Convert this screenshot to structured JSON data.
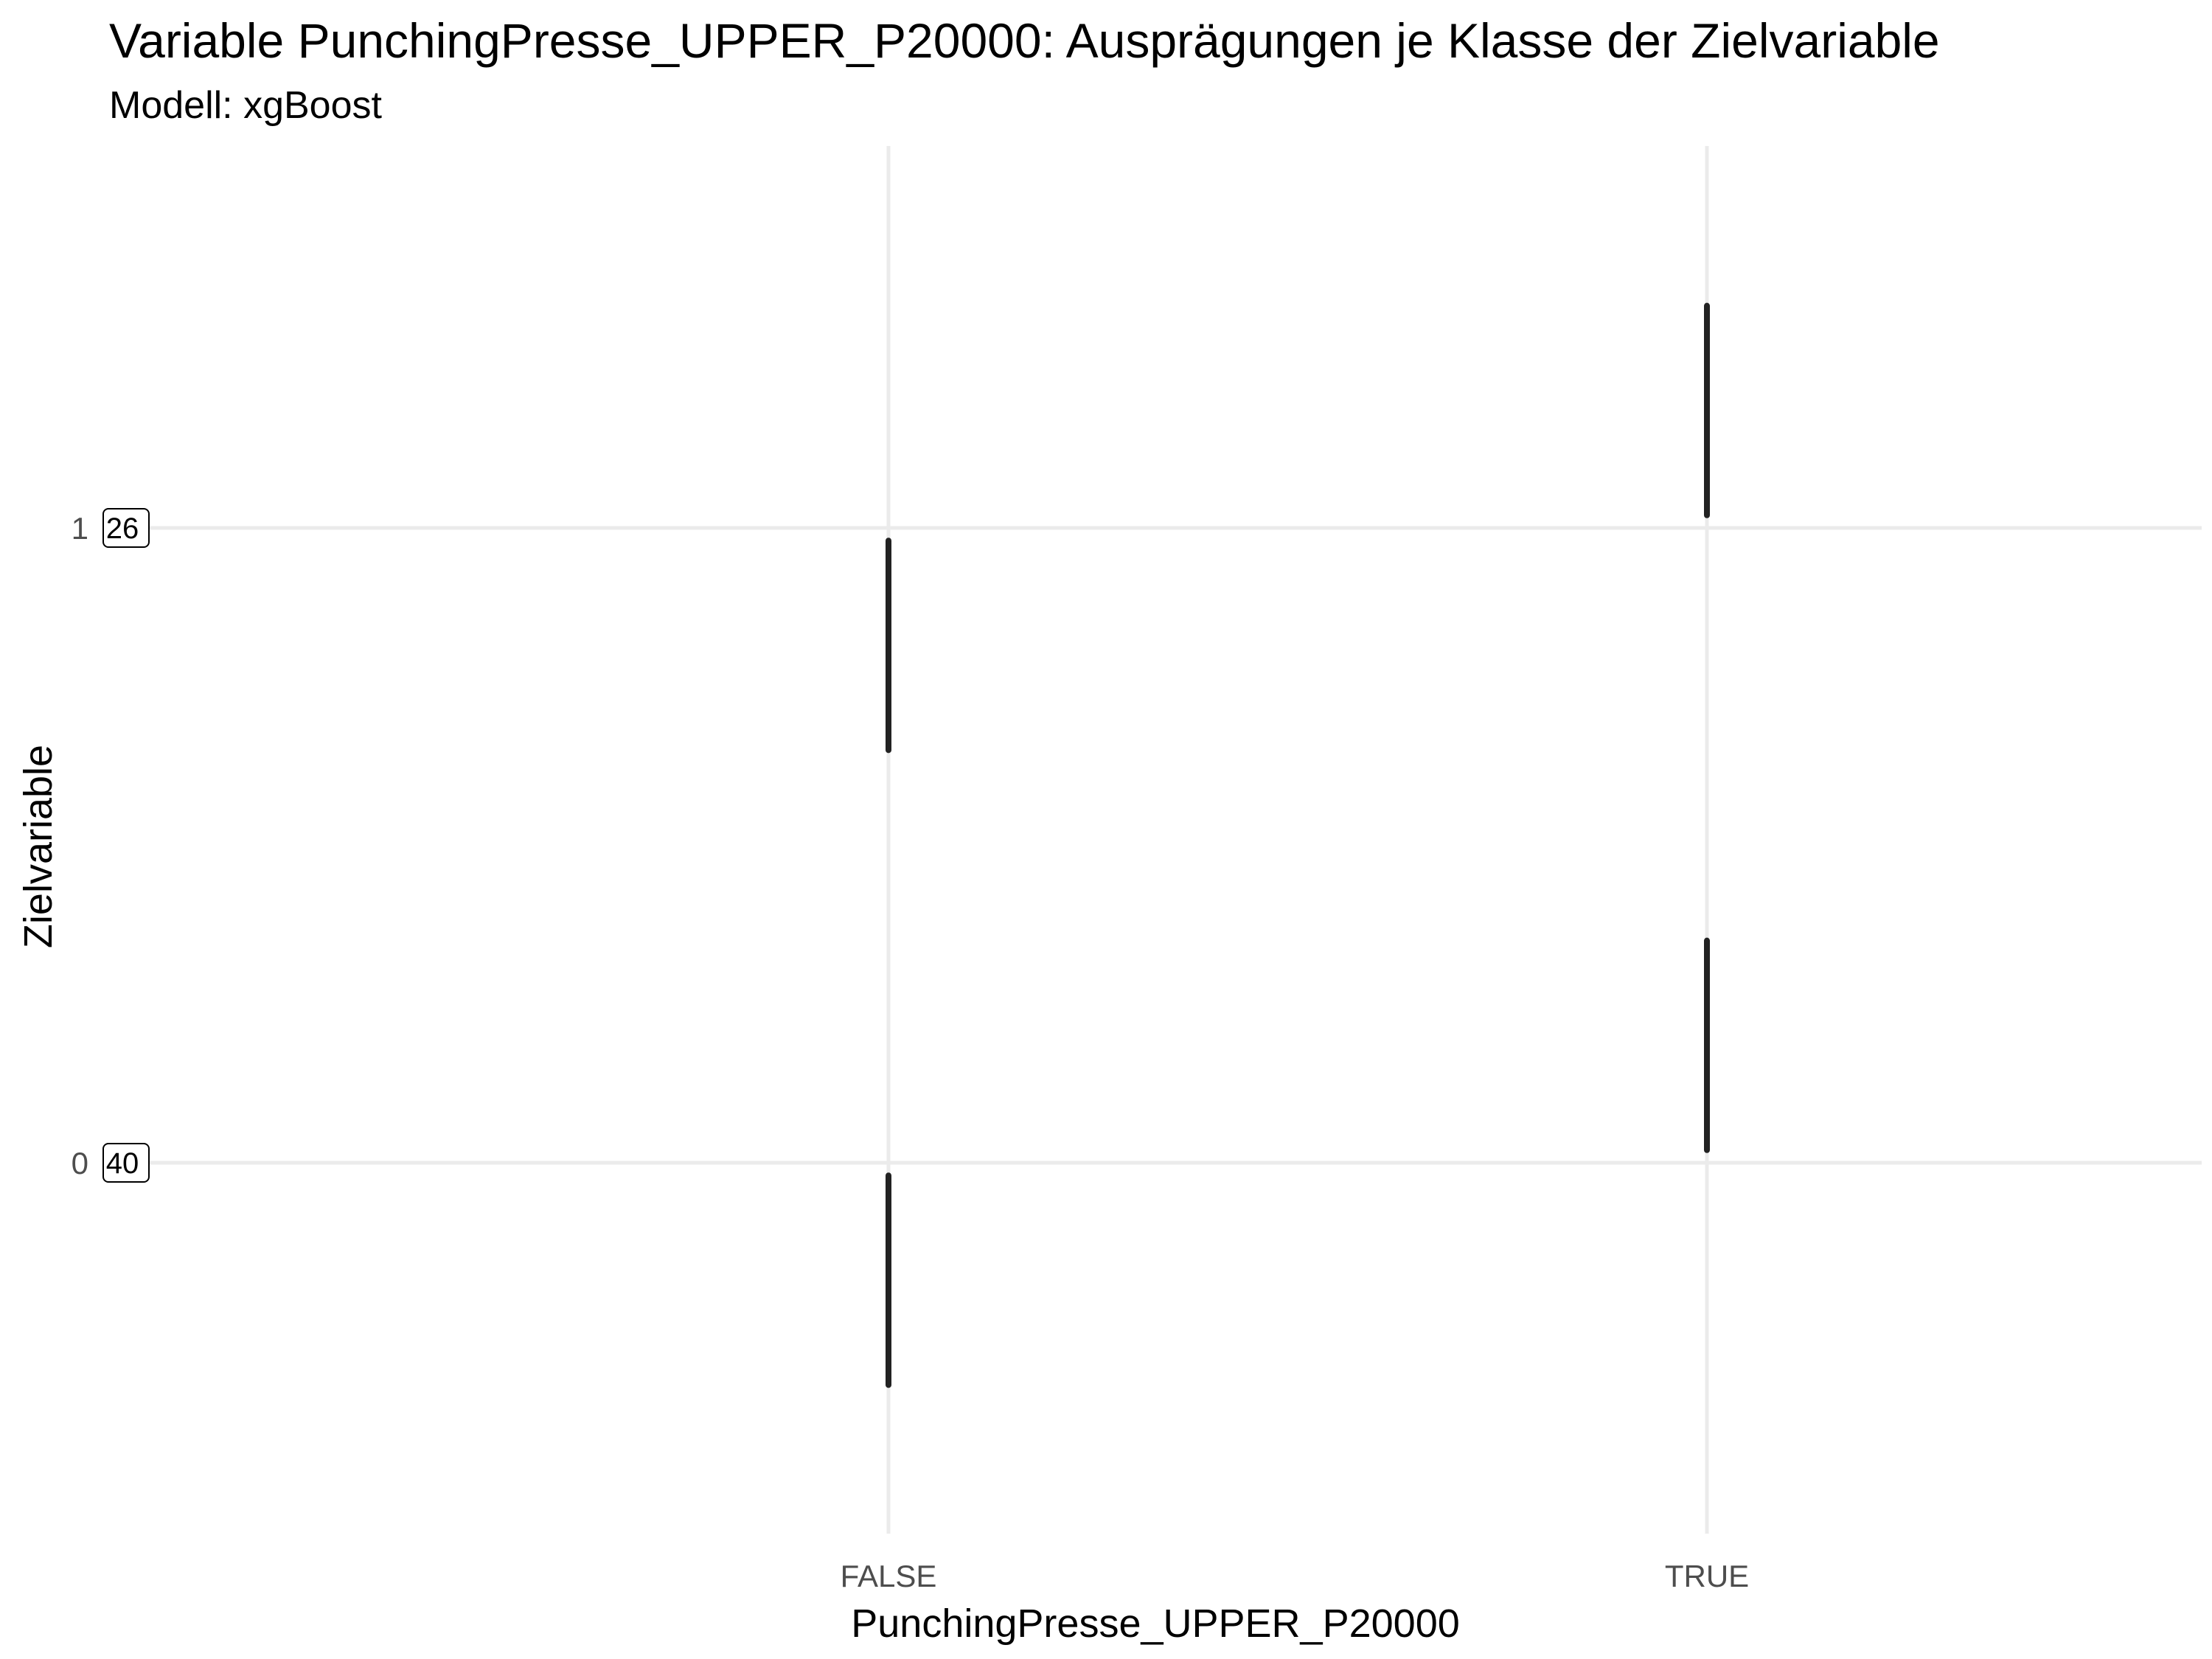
{
  "chart_data": {
    "type": "scatter",
    "title": "Variable PunchingPresse_UPPER_P20000: Ausprägungen je Klasse der Zielvariable",
    "subtitle": "Modell: xgBoost",
    "xlabel": "PunchingPresse_UPPER_P20000",
    "ylabel": "Zielvariable",
    "categories": [
      "FALSE",
      "TRUE"
    ],
    "y_ticks": [
      "0",
      "1"
    ],
    "ylim": [
      -0.6,
      1.6
    ],
    "grid": true,
    "legend": "none",
    "count_labels": [
      {
        "y": 1,
        "label": "26"
      },
      {
        "y": 0,
        "label": "40"
      }
    ],
    "segments": [
      {
        "x": "FALSE",
        "target": 1,
        "y_start": 0.65,
        "y_end": 0.98
      },
      {
        "x": "TRUE",
        "target": 1,
        "y_start": 1.02,
        "y_end": 1.35
      },
      {
        "x": "FALSE",
        "target": 0,
        "y_start": -0.35,
        "y_end": -0.02
      },
      {
        "x": "TRUE",
        "target": 0,
        "y_start": 0.02,
        "y_end": 0.35
      }
    ]
  },
  "colors": {
    "segment": "#222222",
    "grid": "#ebebeb",
    "tick_text": "#4d4d4d",
    "background": "#ffffff"
  }
}
